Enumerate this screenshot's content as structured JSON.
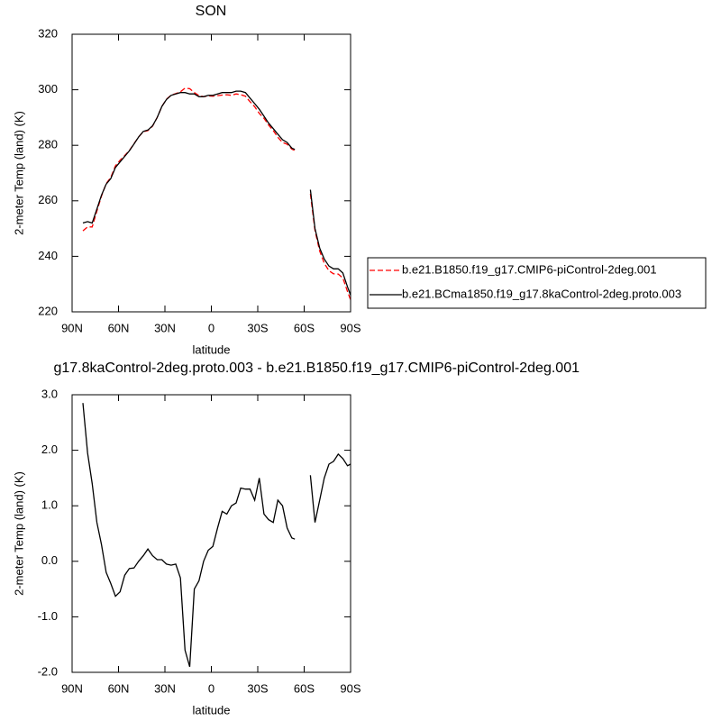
{
  "chart_data": [
    {
      "type": "line",
      "title": "SON",
      "xlabel": "latitude",
      "ylabel": "2-meter Temp (land) (K)",
      "x": [
        83,
        80,
        77,
        74,
        71,
        68,
        65,
        62,
        59,
        56,
        53,
        50,
        47,
        44,
        41,
        38,
        35,
        32,
        29,
        26,
        23,
        20,
        17,
        14,
        11,
        8,
        5,
        2,
        -1,
        -4,
        -7,
        -10,
        -13,
        -16,
        -19,
        -22,
        -25,
        -28,
        -31,
        -34,
        -37,
        -40,
        -43,
        -46,
        -49,
        -52,
        -54,
        -58,
        -61,
        -64,
        -67,
        -70,
        -73,
        -76,
        -79,
        -82,
        -85,
        -88,
        -90
      ],
      "series": [
        {
          "name": "b.e21.B1850.f19_g17.CMIP6-piControl-2deg.001",
          "color": "#ff0000",
          "dash": true,
          "values": [
            249.2,
            250.6,
            250.6,
            256.3,
            261.7,
            266.2,
            268.4,
            272.6,
            274.6,
            276.3,
            278.1,
            280.6,
            283,
            284.9,
            285.3,
            286.9,
            290,
            294,
            296.6,
            298.1,
            298.6,
            299.3,
            300.6,
            300.4,
            299,
            297.9,
            297.5,
            297.8,
            297.7,
            297.9,
            298.1,
            298.2,
            298,
            298.5,
            298.2,
            297.7,
            295.7,
            293.9,
            291.5,
            289.7,
            287.3,
            285.3,
            282.9,
            281,
            280.4,
            278.6,
            278.1,
            null,
            null,
            262.5,
            249.3,
            241.9,
            237.5,
            234.8,
            233.7,
            233.6,
            232.2,
            227.3,
            224.3
          ]
        },
        {
          "name": "b.e21.BCma1850.f19_g17.8kaControl-2deg.proto.003",
          "color": "#000000",
          "dash": false,
          "values": [
            252,
            252.5,
            252,
            257,
            262,
            266,
            268,
            272,
            274,
            276,
            278,
            280.5,
            283,
            285,
            285.5,
            287,
            290,
            294,
            296.5,
            298,
            298.5,
            299,
            299,
            298.5,
            298.5,
            297.5,
            297.5,
            298,
            298,
            298.5,
            299,
            299,
            299,
            299.5,
            299.5,
            299,
            297,
            295,
            293,
            290.5,
            288,
            286,
            284,
            282,
            281,
            279,
            278.5,
            null,
            null,
            264,
            250,
            243,
            239,
            236.5,
            235.5,
            235.5,
            234,
            229,
            226
          ]
        }
      ],
      "xlim": [
        90,
        -90
      ],
      "xticks": [
        {
          "value": 90,
          "label": "90N"
        },
        {
          "value": 60,
          "label": "60N"
        },
        {
          "value": 30,
          "label": "30N"
        },
        0,
        {
          "value": -30,
          "label": "30S"
        },
        {
          "value": -60,
          "label": "60S"
        },
        {
          "value": -90,
          "label": "90S"
        }
      ],
      "ylim": [
        220,
        320
      ],
      "yticks": [
        220,
        240,
        260,
        280,
        300,
        320
      ],
      "legend": "right"
    },
    {
      "type": "line",
      "title": "g17.8kaControl-2deg.proto.003 - b.e21.B1850.f19_g17.CMIP6-piControl-2deg.001",
      "xlabel": "latitude",
      "ylabel": "2-meter Temp (land) (K)",
      "x": [
        83,
        80,
        77,
        74,
        71,
        68,
        65,
        62,
        59,
        56,
        53,
        50,
        47,
        44,
        41,
        38,
        35,
        32,
        29,
        26,
        23,
        20,
        17,
        14,
        11,
        8,
        5,
        2,
        -1,
        -4,
        -7,
        -10,
        -13,
        -16,
        -19,
        -22,
        -25,
        -28,
        -31,
        -34,
        -37,
        -40,
        -43,
        -46,
        -49,
        -52,
        -54,
        -58,
        -61,
        -64,
        -67,
        -70,
        -73,
        -76,
        -79,
        -82,
        -85,
        -88,
        -90
      ],
      "series": [
        {
          "color": "#000000",
          "dash": false,
          "values": [
            2.85,
            1.95,
            1.4,
            0.7,
            0.3,
            -0.2,
            -0.4,
            -0.63,
            -0.55,
            -0.25,
            -0.13,
            -0.12,
            0.0,
            0.1,
            0.22,
            0.1,
            0.03,
            0.03,
            -0.05,
            -0.07,
            -0.05,
            -0.3,
            -1.6,
            -1.9,
            -0.5,
            -0.35,
            0.0,
            0.2,
            0.27,
            0.6,
            0.9,
            0.85,
            1.0,
            1.05,
            1.32,
            1.3,
            1.3,
            1.1,
            1.5,
            0.85,
            0.75,
            0.7,
            1.1,
            1.0,
            0.6,
            0.42,
            0.4,
            null,
            null,
            1.55,
            0.7,
            1.1,
            1.5,
            1.75,
            1.8,
            1.93,
            1.85,
            1.72,
            1.75
          ]
        }
      ],
      "xlim": [
        90,
        -90
      ],
      "xticks": [
        {
          "value": 90,
          "label": "90N"
        },
        {
          "value": 60,
          "label": "60N"
        },
        {
          "value": 30,
          "label": "30N"
        },
        0,
        {
          "value": -30,
          "label": "30S"
        },
        {
          "value": -60,
          "label": "60S"
        },
        {
          "value": -90,
          "label": "90S"
        }
      ],
      "ylim": [
        -2,
        3
      ],
      "yticks": [
        {
          "value": -2,
          "label": "-2.0"
        },
        {
          "value": -1,
          "label": "-1.0"
        },
        {
          "value": 0,
          "label": "0.0"
        },
        {
          "value": 1,
          "label": "1.0"
        },
        {
          "value": 2,
          "label": "2.0"
        },
        {
          "value": 3,
          "label": "3.0"
        }
      ]
    }
  ]
}
